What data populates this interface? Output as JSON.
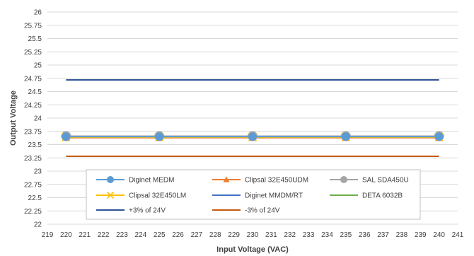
{
  "chart_data": {
    "type": "line",
    "xlabel": "Input Voltage (VAC)",
    "ylabel": "Output Voltage",
    "xlim": [
      219,
      241
    ],
    "ylim": [
      22,
      26
    ],
    "x_ticks": [
      219,
      220,
      221,
      222,
      223,
      224,
      225,
      226,
      227,
      228,
      229,
      230,
      231,
      232,
      233,
      234,
      235,
      236,
      237,
      238,
      239,
      240,
      241
    ],
    "y_ticks": [
      22,
      22.25,
      22.5,
      22.75,
      23,
      23.25,
      23.5,
      23.75,
      24,
      24.25,
      24.5,
      24.75,
      25,
      25.25,
      25.5,
      25.75,
      26
    ],
    "grid": "horizontal",
    "legend_position": "inside-bottom-center",
    "series": [
      {
        "name": "Diginet MEDM",
        "color": "#5B9BD5",
        "marker": "circle",
        "x": [
          220,
          225,
          230,
          235,
          240
        ],
        "y": [
          23.65,
          23.65,
          23.65,
          23.65,
          23.65
        ]
      },
      {
        "name": "Clipsal 32E450UDM",
        "color": "#ED7D31",
        "marker": "triangle",
        "x": [
          220,
          225,
          230,
          235,
          240
        ],
        "y": [
          23.63,
          23.63,
          23.63,
          23.63,
          23.63
        ]
      },
      {
        "name": "SAL SDA450U",
        "color": "#A5A5A5",
        "marker": "circle",
        "x": [
          220,
          225,
          230,
          235,
          240
        ],
        "y": [
          23.66,
          23.66,
          23.66,
          23.66,
          23.66
        ]
      },
      {
        "name": "Clipsal 32E450LM",
        "color": "#FFC000",
        "marker": "x",
        "x": [
          220,
          225,
          230,
          235,
          240
        ],
        "y": [
          23.64,
          23.64,
          23.64,
          23.64,
          23.64
        ]
      },
      {
        "name": "Diginet MMDM/RT",
        "color": "#4472C4",
        "marker": "none",
        "x": [
          220,
          240
        ],
        "y": [
          23.64,
          23.64
        ]
      },
      {
        "name": "DETA 6032B",
        "color": "#70AD47",
        "marker": "none",
        "x": [
          230,
          240
        ],
        "y": [
          23.65,
          23.65
        ]
      },
      {
        "name": "+3% of 24V",
        "color": "#2F5597",
        "marker": "none",
        "x": [
          220,
          240
        ],
        "y": [
          24.72,
          24.72
        ]
      },
      {
        "name": "-3% of 24V",
        "color": "#C55A11",
        "marker": "none",
        "x": [
          220,
          240
        ],
        "y": [
          23.28,
          23.28
        ]
      }
    ]
  }
}
